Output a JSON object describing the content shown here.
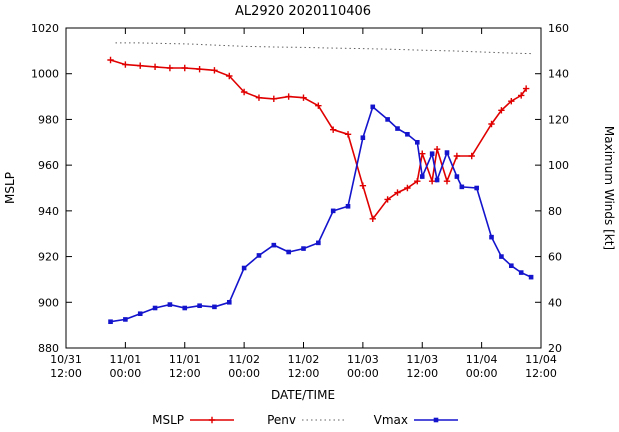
{
  "title": "AL2920 2020110406",
  "chart_data": {
    "type": "line",
    "title": "AL2920 2020110406",
    "xlabel": "DATE/TIME",
    "ylabel_left": "MSLP",
    "ylabel_right": "Maximum Winds [kt]",
    "grid": false,
    "legend_position": "bottom",
    "x_axis": {
      "min_hours": 0,
      "max_hours": 96,
      "tick_step_hours": 12,
      "tick_labels": [
        [
          "10/31",
          "12:00"
        ],
        [
          "11/01",
          "00:00"
        ],
        [
          "11/01",
          "12:00"
        ],
        [
          "11/02",
          "00:00"
        ],
        [
          "11/02",
          "12:00"
        ],
        [
          "11/03",
          "00:00"
        ],
        [
          "11/03",
          "12:00"
        ],
        [
          "11/04",
          "00:00"
        ],
        [
          "11/04",
          "12:00"
        ]
      ]
    },
    "y_left": {
      "min": 880,
      "max": 1020,
      "step": 20
    },
    "y_right": {
      "min": 20,
      "max": 160,
      "step": 20
    },
    "series": [
      {
        "name": "MSLP",
        "axis": "left",
        "color": "#e00000",
        "style": "solid",
        "marker": "plus",
        "points": [
          [
            9,
            1006
          ],
          [
            12,
            1004
          ],
          [
            15,
            1003.5
          ],
          [
            18,
            1003
          ],
          [
            21,
            1002.5
          ],
          [
            24,
            1002.5
          ],
          [
            27,
            1002
          ],
          [
            30,
            1001.5
          ],
          [
            33,
            999
          ],
          [
            36,
            992
          ],
          [
            39,
            989.5
          ],
          [
            42,
            989
          ],
          [
            45,
            990
          ],
          [
            48,
            989.5
          ],
          [
            51,
            986
          ],
          [
            54,
            975.5
          ],
          [
            57,
            973.5
          ],
          [
            60,
            951
          ],
          [
            62,
            936.5
          ],
          [
            65,
            945
          ],
          [
            67,
            948
          ],
          [
            69,
            950
          ],
          [
            71,
            953
          ],
          [
            72,
            965
          ],
          [
            74,
            953
          ],
          [
            75,
            967
          ],
          [
            77,
            953
          ],
          [
            79,
            964
          ],
          [
            82,
            964
          ],
          [
            86,
            978
          ],
          [
            88,
            984
          ],
          [
            90,
            988
          ],
          [
            92,
            990.5
          ],
          [
            93,
            993.5
          ]
        ]
      },
      {
        "name": "Penv",
        "axis": "left",
        "color": "#606060",
        "style": "dotted",
        "marker": "none",
        "points": [
          [
            10,
            1013.5
          ],
          [
            15,
            1013.5
          ],
          [
            20,
            1013.2
          ],
          [
            25,
            1013
          ],
          [
            30,
            1012.5
          ],
          [
            36,
            1012
          ],
          [
            42,
            1011.7
          ],
          [
            48,
            1011.5
          ],
          [
            54,
            1011.2
          ],
          [
            60,
            1011
          ],
          [
            66,
            1010.7
          ],
          [
            72,
            1010.3
          ],
          [
            78,
            1010
          ],
          [
            84,
            1009.5
          ],
          [
            90,
            1009
          ],
          [
            94,
            1008.8
          ]
        ]
      },
      {
        "name": "Vmax",
        "axis": "right",
        "color": "#1414cd",
        "style": "solid",
        "marker": "square",
        "points": [
          [
            9,
            31.5
          ],
          [
            12,
            32.5
          ],
          [
            15,
            35
          ],
          [
            18,
            37.5
          ],
          [
            21,
            39
          ],
          [
            24,
            37.5
          ],
          [
            27,
            38.5
          ],
          [
            30,
            38
          ],
          [
            33,
            40
          ],
          [
            36,
            55
          ],
          [
            39,
            60.5
          ],
          [
            42,
            65
          ],
          [
            45,
            62
          ],
          [
            48,
            63.5
          ],
          [
            51,
            66
          ],
          [
            54,
            80
          ],
          [
            57,
            82
          ],
          [
            60,
            112
          ],
          [
            62,
            125.5
          ],
          [
            65,
            120
          ],
          [
            67,
            116
          ],
          [
            69,
            113.5
          ],
          [
            71,
            110
          ],
          [
            72,
            95
          ],
          [
            74,
            105
          ],
          [
            75,
            93.5
          ],
          [
            77,
            105.5
          ],
          [
            79,
            95
          ],
          [
            80,
            90.5
          ],
          [
            83,
            90
          ],
          [
            86,
            68.5
          ],
          [
            88,
            60
          ],
          [
            90,
            56
          ],
          [
            92,
            53
          ],
          [
            94,
            51
          ]
        ]
      }
    ]
  }
}
